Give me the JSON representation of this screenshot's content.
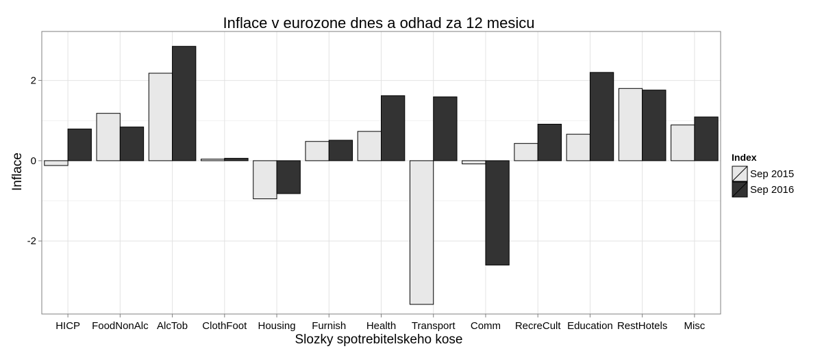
{
  "chart_data": {
    "type": "bar",
    "title": "Inflace v eurozone dnes a odhad za 12 mesicu",
    "xlabel": "Slozky spotrebitelskeho kose",
    "ylabel": "Inflace",
    "categories": [
      "HICP",
      "FoodNonAlc",
      "AlcTob",
      "ClothFoot",
      "Housing",
      "Furnish",
      "Health",
      "Transport",
      "Comm",
      "RecreCult",
      "Education",
      "RestHotels",
      "Misc"
    ],
    "series": [
      {
        "name": "Sep 2015",
        "color": "#e8e8e8",
        "values": [
          -0.12,
          1.18,
          2.18,
          0.04,
          -0.95,
          0.48,
          0.73,
          -3.58,
          -0.08,
          0.43,
          0.66,
          1.8,
          0.89
        ]
      },
      {
        "name": "Sep 2016",
        "color": "#333333",
        "values": [
          0.79,
          0.84,
          2.85,
          0.06,
          -0.82,
          0.51,
          1.62,
          1.59,
          -2.6,
          0.91,
          2.2,
          1.76,
          1.09
        ]
      }
    ],
    "ylim": [
      -3.82,
      3.22
    ],
    "yticks": [
      -2,
      0,
      2
    ],
    "ytick_labels": [
      "-2",
      "0",
      "2"
    ],
    "legend_title": "Index",
    "legend_position": "right",
    "grid": true
  }
}
